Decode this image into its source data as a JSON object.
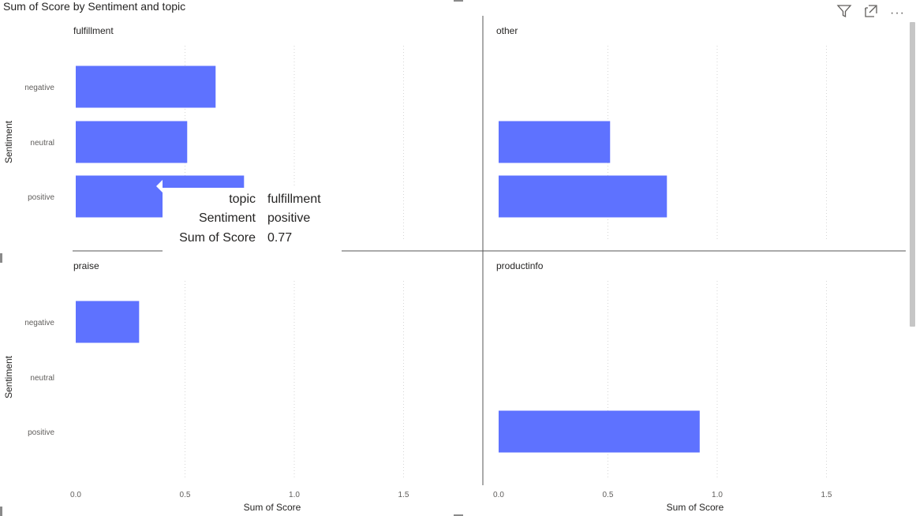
{
  "visual": {
    "title": "Sum of Score by Sentiment and topic",
    "toolbar": [
      {
        "name": "filter-icon",
        "label": ""
      },
      {
        "name": "focus-mode-icon",
        "label": ""
      },
      {
        "name": "more-options-icon",
        "label": "···"
      }
    ]
  },
  "chart_data": {
    "type": "bar",
    "orientation": "horizontal",
    "small_multiples_by": "topic",
    "categories": [
      "negative",
      "neutral",
      "positive"
    ],
    "ylabel": "Sentiment",
    "xlabel": "Sum of Score",
    "xlim": [
      0,
      1.85
    ],
    "xticks": [
      0,
      0.5,
      1,
      1.5
    ],
    "xtick_labels": [
      "0.0",
      "0.5",
      "1.0",
      "1.5"
    ],
    "grid": "vertical dotted",
    "bar_color": "#5e72ff",
    "panels": [
      {
        "topic": "fulfillment",
        "values": [
          0.64,
          0.51,
          0.77
        ]
      },
      {
        "topic": "other",
        "values": [
          null,
          0.51,
          0.77
        ]
      },
      {
        "topic": "praise",
        "values": [
          0.29,
          null,
          null
        ]
      },
      {
        "topic": "productinfo",
        "values": [
          null,
          null,
          0.92
        ]
      }
    ]
  },
  "tooltip": {
    "rows": [
      {
        "key": "topic",
        "value": "fulfillment"
      },
      {
        "key": "Sentiment",
        "value": "positive"
      },
      {
        "key": "Sum of Score",
        "value": "0.77"
      }
    ]
  }
}
